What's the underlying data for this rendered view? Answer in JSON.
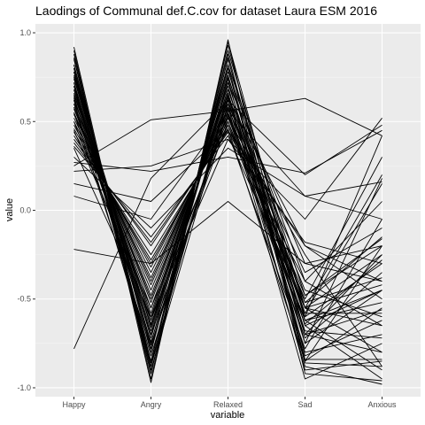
{
  "chart_data": {
    "type": "line",
    "title": "Laodings of Communal def.C.cov for dataset Laura ESM 2016",
    "xlabel": "variable",
    "ylabel": "value",
    "categories": [
      "Happy",
      "Angry",
      "Relaxed",
      "Sad",
      "Anxious"
    ],
    "y_ticks": [
      -1.0,
      -0.5,
      0.0,
      0.5,
      1.0
    ],
    "y_tick_labels": [
      "-1.0",
      "-0.5",
      "0.0",
      "0.5",
      "1.0"
    ],
    "ylim": [
      -1.05,
      1.05
    ],
    "grid": true,
    "legend": "none",
    "colors": {
      "panel": "#ebebeb",
      "grid_major": "#ffffff",
      "grid_minor": "#f5f5f5",
      "line": "#000000"
    },
    "series": [
      {
        "values": [
          0.92,
          -0.95,
          0.95,
          -0.62,
          -0.9
        ]
      },
      {
        "values": [
          0.88,
          -0.92,
          0.93,
          -0.7,
          -0.8
        ]
      },
      {
        "values": [
          0.85,
          -0.88,
          0.9,
          -0.55,
          -0.65
        ]
      },
      {
        "values": [
          0.82,
          -0.85,
          0.88,
          -0.75,
          -0.45
        ]
      },
      {
        "values": [
          0.8,
          -0.8,
          0.85,
          -0.6,
          -0.3
        ]
      },
      {
        "values": [
          0.78,
          -0.75,
          0.82,
          -0.48,
          -0.2
        ]
      },
      {
        "values": [
          0.75,
          -0.72,
          0.8,
          -0.85,
          -0.55
        ]
      },
      {
        "values": [
          0.74,
          -0.7,
          0.78,
          -0.4,
          0.05
        ]
      },
      {
        "values": [
          0.72,
          -0.68,
          0.76,
          -0.65,
          -0.95
        ]
      },
      {
        "values": [
          0.7,
          -0.65,
          0.75,
          -0.55,
          0.2
        ]
      },
      {
        "values": [
          0.68,
          -0.62,
          0.72,
          -0.3,
          -0.4
        ]
      },
      {
        "values": [
          0.66,
          -0.6,
          0.7,
          -0.8,
          -0.7
        ]
      },
      {
        "values": [
          0.65,
          -0.58,
          0.68,
          -0.52,
          -0.15
        ]
      },
      {
        "values": [
          0.63,
          -0.55,
          0.66,
          -0.9,
          -0.85
        ]
      },
      {
        "values": [
          0.62,
          -0.52,
          0.65,
          -0.6,
          0.42
        ]
      },
      {
        "values": [
          0.6,
          -0.5,
          0.63,
          -0.2,
          -0.5
        ]
      },
      {
        "values": [
          0.58,
          -0.48,
          0.62,
          -0.7,
          -0.25
        ]
      },
      {
        "values": [
          0.57,
          -0.45,
          0.6,
          -0.45,
          -0.6
        ]
      },
      {
        "values": [
          0.55,
          -0.42,
          0.58,
          -0.95,
          -0.75
        ]
      },
      {
        "values": [
          0.54,
          -0.4,
          0.57,
          -0.35,
          -0.1
        ]
      },
      {
        "values": [
          0.52,
          -0.38,
          0.55,
          -0.58,
          0.15
        ]
      },
      {
        "values": [
          0.5,
          -0.35,
          0.53,
          -0.72,
          -0.35
        ]
      },
      {
        "values": [
          0.48,
          -0.32,
          0.52,
          -0.25,
          -0.88
        ]
      },
      {
        "values": [
          0.46,
          -0.3,
          0.5,
          -0.62,
          -0.45
        ]
      },
      {
        "values": [
          0.44,
          -0.28,
          0.48,
          -0.5,
          0.3
        ]
      },
      {
        "values": [
          0.42,
          -0.25,
          0.46,
          -0.85,
          -0.2
        ]
      },
      {
        "values": [
          0.4,
          -0.2,
          0.45,
          -0.4,
          -0.65
        ]
      },
      {
        "values": [
          0.38,
          -0.18,
          0.44,
          -0.78,
          -0.05
        ]
      },
      {
        "values": [
          0.36,
          -0.15,
          0.42,
          -0.55,
          -0.8
        ]
      },
      {
        "values": [
          0.35,
          -0.6,
          0.4,
          -0.18,
          -0.3
        ]
      },
      {
        "values": [
          0.82,
          -0.78,
          0.72,
          -0.65,
          -0.45
        ]
      },
      {
        "values": [
          0.76,
          -0.66,
          0.68,
          -0.58,
          -0.58
        ]
      },
      {
        "values": [
          0.7,
          -0.82,
          0.62,
          -0.68,
          -0.72
        ]
      },
      {
        "values": [
          0.64,
          -0.74,
          0.58,
          -0.52,
          -0.38
        ]
      },
      {
        "values": [
          0.58,
          -0.64,
          0.54,
          -0.62,
          -0.52
        ]
      },
      {
        "values": [
          0.9,
          -0.97,
          0.96,
          -0.92,
          -0.96
        ]
      },
      {
        "values": [
          0.86,
          -0.9,
          0.6,
          -0.88,
          -0.98
        ]
      },
      {
        "values": [
          0.78,
          -0.86,
          0.64,
          -0.75,
          0.18
        ]
      },
      {
        "values": [
          0.68,
          -0.76,
          0.56,
          0.08,
          0.16
        ]
      },
      {
        "values": [
          0.6,
          -0.7,
          0.5,
          -0.55,
          -0.42
        ]
      },
      {
        "values": [
          0.25,
          0.51,
          0.56,
          0.63,
          0.42
        ]
      },
      {
        "values": [
          0.27,
          0.22,
          0.3,
          0.21,
          0.45
        ]
      },
      {
        "values": [
          0.22,
          0.25,
          0.4,
          -0.05,
          0.52
        ]
      },
      {
        "values": [
          0.15,
          0.05,
          0.45,
          -0.2,
          -0.4
        ]
      },
      {
        "values": [
          0.08,
          -0.05,
          0.55,
          -0.55,
          -0.25
        ]
      },
      {
        "values": [
          -0.22,
          -0.3,
          0.05,
          -0.3,
          -0.2
        ]
      },
      {
        "values": [
          -0.78,
          0.18,
          0.62,
          0.2,
          0.48
        ]
      },
      {
        "values": [
          0.3,
          -0.1,
          0.35,
          0.08,
          -0.05
        ]
      },
      {
        "values": [
          0.62,
          -0.85,
          0.82,
          -0.84,
          -0.84
        ]
      },
      {
        "values": [
          0.55,
          -0.78,
          0.74,
          -0.86,
          -0.88
        ]
      },
      {
        "values": [
          0.72,
          -0.88,
          0.66,
          -0.7,
          -0.56
        ]
      },
      {
        "values": [
          0.8,
          -0.92,
          0.86,
          -0.82,
          -0.62
        ]
      },
      {
        "values": [
          0.45,
          -0.55,
          0.48,
          -0.64,
          -0.28
        ]
      },
      {
        "values": [
          0.5,
          -0.62,
          0.52,
          -0.48,
          -0.16
        ]
      }
    ]
  }
}
